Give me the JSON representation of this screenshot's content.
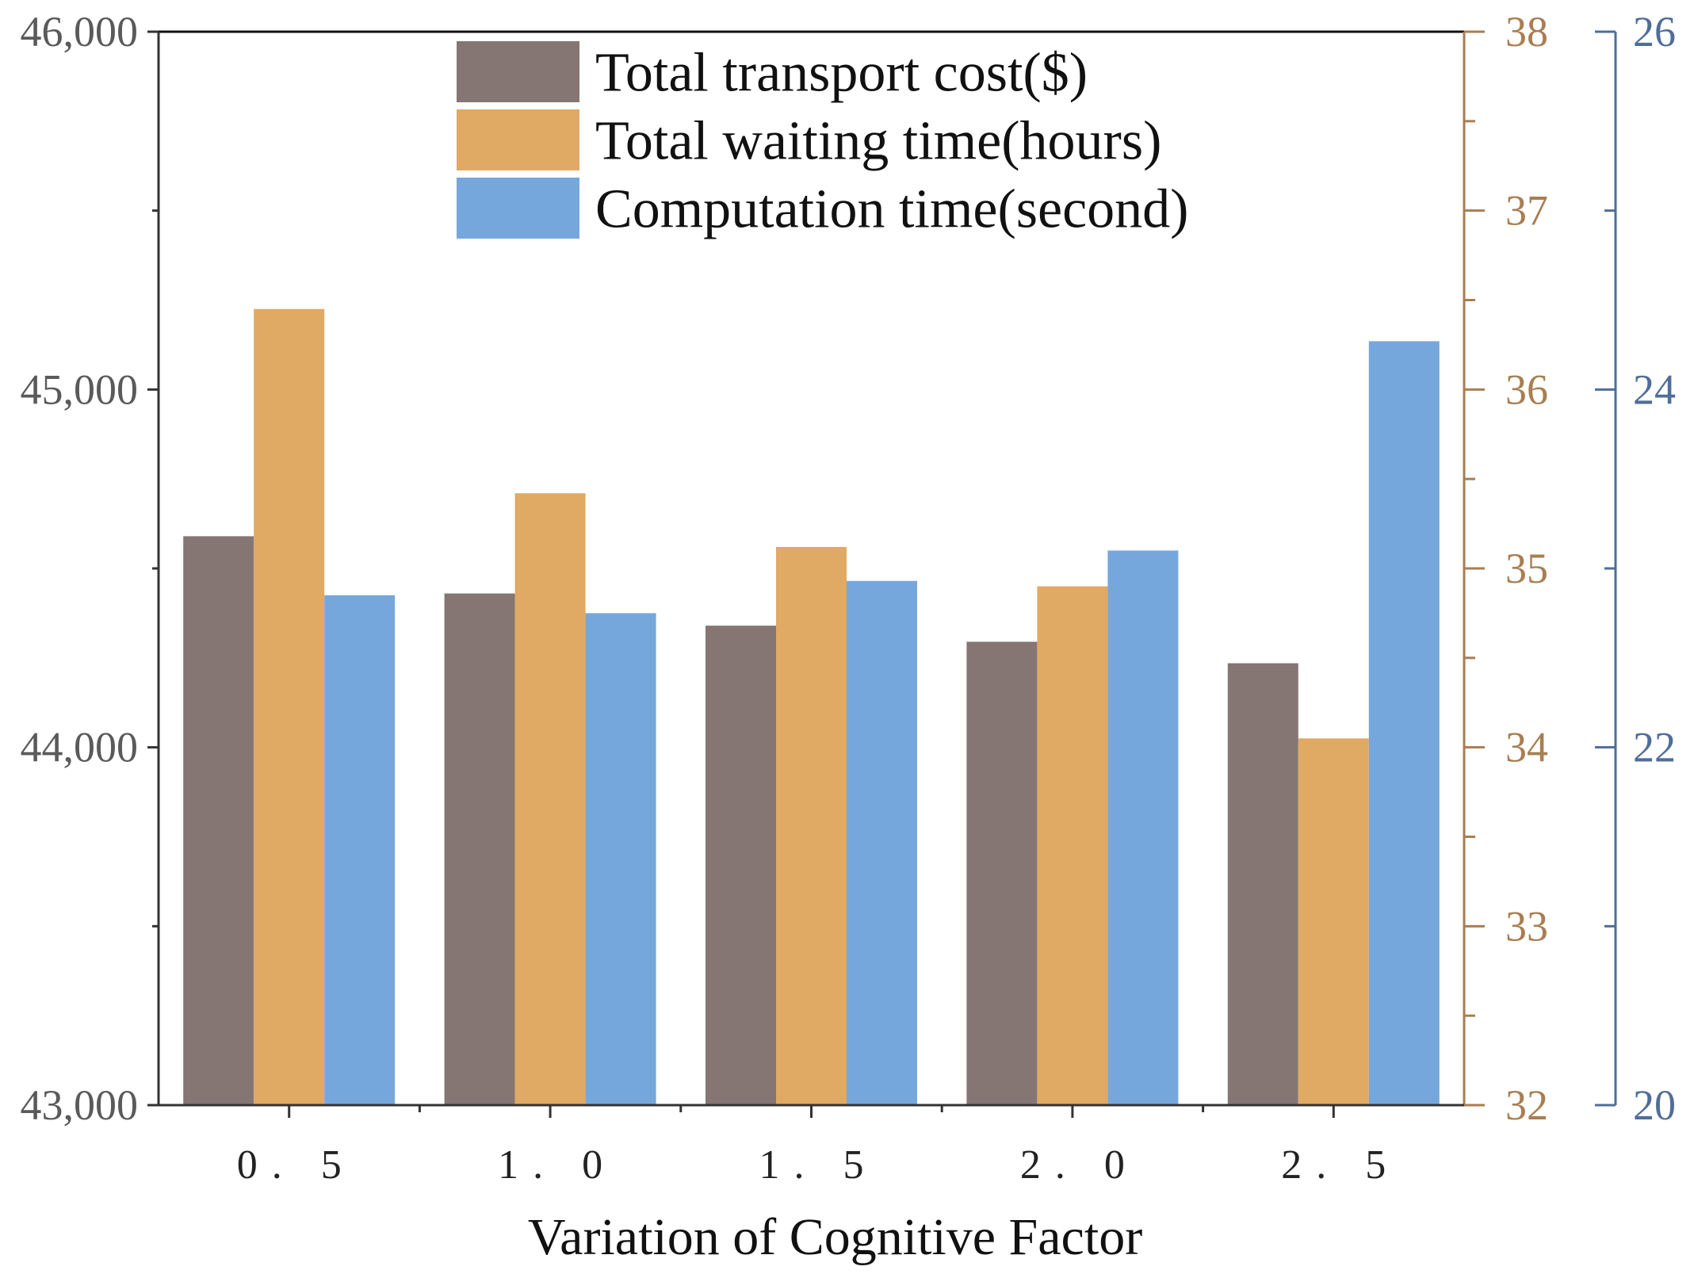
{
  "chart_data": {
    "type": "bar",
    "title": "",
    "xlabel": "Variation of Cognitive Factor",
    "categories": [
      "0.5",
      "1.0",
      "1.5",
      "2.0",
      "2.5"
    ],
    "category_labels": [
      "0. 5",
      "1. 0",
      "1. 5",
      "2. 0",
      "2. 5"
    ],
    "axes": {
      "left": {
        "ylim": [
          43000,
          46000
        ],
        "ticks": [
          43000,
          44000,
          45000,
          46000
        ],
        "tick_labels": [
          "43,000",
          "44,000",
          "45,000",
          "46,000"
        ],
        "color": "#5a5a5a"
      },
      "right1": {
        "ylim": [
          32,
          38
        ],
        "ticks": [
          32,
          33,
          34,
          35,
          36,
          37,
          38
        ],
        "tick_labels": [
          "32",
          "33",
          "34",
          "35",
          "36",
          "37",
          "38"
        ],
        "color": "#a87e52"
      },
      "right2": {
        "ylim": [
          20,
          26
        ],
        "ticks": [
          20,
          22,
          24,
          26
        ],
        "tick_labels": [
          "20",
          "22",
          "24",
          "26"
        ],
        "color": "#4f6d99"
      }
    },
    "series": [
      {
        "name": "Total transport cost($)",
        "axis": "left",
        "color": "#857673",
        "values": [
          44590,
          44430,
          44340,
          44295,
          44235
        ]
      },
      {
        "name": "Total waiting time(hours)",
        "axis": "right1",
        "color": "#e0a964",
        "values": [
          36.45,
          35.42,
          35.12,
          34.9,
          34.05
        ]
      },
      {
        "name": "Computation time(second)",
        "axis": "right2",
        "color": "#76a7dc",
        "values": [
          22.85,
          22.75,
          22.93,
          23.1,
          24.27
        ]
      }
    ],
    "legend": "top-center",
    "grid": false
  }
}
